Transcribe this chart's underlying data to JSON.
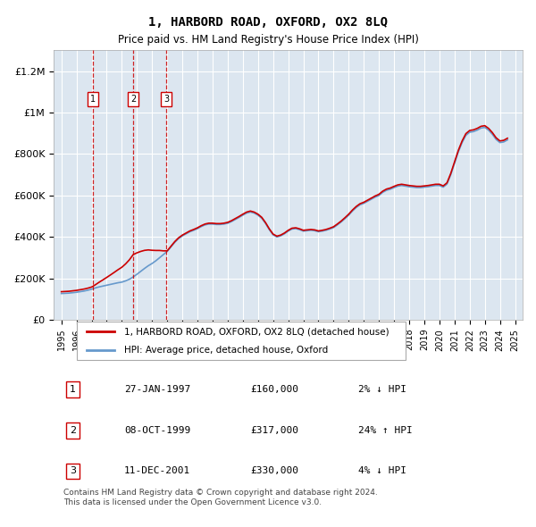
{
  "title": "1, HARBORD ROAD, OXFORD, OX2 8LQ",
  "subtitle": "Price paid vs. HM Land Registry's House Price Index (HPI)",
  "legend_label_red": "1, HARBORD ROAD, OXFORD, OX2 8LQ (detached house)",
  "legend_label_blue": "HPI: Average price, detached house, Oxford",
  "footer": "Contains HM Land Registry data © Crown copyright and database right 2024.\nThis data is licensed under the Open Government Licence v3.0.",
  "transactions": [
    {
      "num": 1,
      "date": "27-JAN-1997",
      "price": "£160,000",
      "hpi_change": "2% ↓ HPI",
      "year_x": 1997.07
    },
    {
      "num": 2,
      "date": "08-OCT-1999",
      "price": "£317,000",
      "hpi_change": "24% ↑ HPI",
      "year_x": 1999.77
    },
    {
      "num": 3,
      "date": "11-DEC-2001",
      "price": "£330,000",
      "hpi_change": "4% ↓ HPI",
      "year_x": 2001.95
    }
  ],
  "transaction_prices": [
    160000,
    317000,
    330000
  ],
  "ylim": [
    0,
    1300000
  ],
  "xlim": [
    1994.5,
    2025.5
  ],
  "yticks": [
    0,
    200000,
    400000,
    600000,
    800000,
    1000000,
    1200000
  ],
  "ytick_labels": [
    "£0",
    "£200K",
    "£400K",
    "£600K",
    "£800K",
    "£1M",
    "£1.2M"
  ],
  "background_color": "#dce6f0",
  "plot_bg_color": "#dce6f0",
  "grid_color": "#ffffff",
  "line_color_red": "#cc0000",
  "line_color_blue": "#6699cc",
  "hpi_data_x": [
    1995.0,
    1995.25,
    1995.5,
    1995.75,
    1996.0,
    1996.25,
    1996.5,
    1996.75,
    1997.0,
    1997.25,
    1997.5,
    1997.75,
    1998.0,
    1998.25,
    1998.5,
    1998.75,
    1999.0,
    1999.25,
    1999.5,
    1999.75,
    2000.0,
    2000.25,
    2000.5,
    2000.75,
    2001.0,
    2001.25,
    2001.5,
    2001.75,
    2002.0,
    2002.25,
    2002.5,
    2002.75,
    2003.0,
    2003.25,
    2003.5,
    2003.75,
    2004.0,
    2004.25,
    2004.5,
    2004.75,
    2005.0,
    2005.25,
    2005.5,
    2005.75,
    2006.0,
    2006.25,
    2006.5,
    2006.75,
    2007.0,
    2007.25,
    2007.5,
    2007.75,
    2008.0,
    2008.25,
    2008.5,
    2008.75,
    2009.0,
    2009.25,
    2009.5,
    2009.75,
    2010.0,
    2010.25,
    2010.5,
    2010.75,
    2011.0,
    2011.25,
    2011.5,
    2011.75,
    2012.0,
    2012.25,
    2012.5,
    2012.75,
    2013.0,
    2013.25,
    2013.5,
    2013.75,
    2014.0,
    2014.25,
    2014.5,
    2014.75,
    2015.0,
    2015.25,
    2015.5,
    2015.75,
    2016.0,
    2016.25,
    2016.5,
    2016.75,
    2017.0,
    2017.25,
    2017.5,
    2017.75,
    2018.0,
    2018.25,
    2018.5,
    2018.75,
    2019.0,
    2019.25,
    2019.5,
    2019.75,
    2020.0,
    2020.25,
    2020.5,
    2020.75,
    2021.0,
    2021.25,
    2021.5,
    2021.75,
    2022.0,
    2022.25,
    2022.5,
    2022.75,
    2023.0,
    2023.25,
    2023.5,
    2023.75,
    2024.0,
    2024.25,
    2024.5
  ],
  "hpi_data_y": [
    127000,
    128000,
    129000,
    131000,
    133000,
    136000,
    139000,
    143000,
    148000,
    154000,
    159000,
    163000,
    167000,
    171000,
    175000,
    179000,
    182000,
    188000,
    196000,
    207000,
    220000,
    234000,
    248000,
    261000,
    272000,
    285000,
    300000,
    315000,
    330000,
    352000,
    374000,
    392000,
    405000,
    415000,
    425000,
    432000,
    440000,
    450000,
    458000,
    462000,
    462000,
    460000,
    460000,
    462000,
    466000,
    474000,
    484000,
    494000,
    505000,
    515000,
    520000,
    515000,
    505000,
    490000,
    465000,
    435000,
    410000,
    400000,
    405000,
    415000,
    428000,
    438000,
    440000,
    435000,
    428000,
    430000,
    432000,
    430000,
    425000,
    428000,
    432000,
    438000,
    445000,
    458000,
    472000,
    488000,
    505000,
    525000,
    542000,
    555000,
    562000,
    572000,
    582000,
    592000,
    600000,
    615000,
    625000,
    630000,
    638000,
    645000,
    648000,
    645000,
    642000,
    640000,
    638000,
    638000,
    640000,
    642000,
    645000,
    648000,
    648000,
    640000,
    655000,
    700000,
    755000,
    810000,
    855000,
    890000,
    905000,
    908000,
    915000,
    925000,
    928000,
    915000,
    895000,
    870000,
    855000,
    858000,
    868000
  ]
}
